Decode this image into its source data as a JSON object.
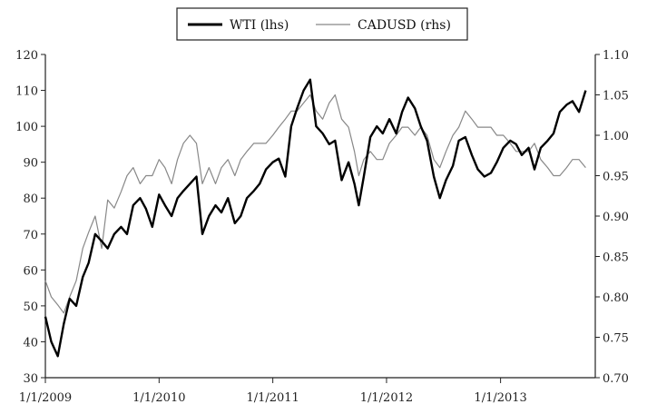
{
  "chart_data": {
    "type": "line",
    "legend_position": "top-center",
    "grid": false,
    "x_ticks": [
      "1/1/2009",
      "1/1/2010",
      "1/1/2011",
      "1/1/2012",
      "1/1/2013"
    ],
    "y_left": {
      "range": [
        30,
        120
      ],
      "ticks": [
        "30",
        "40",
        "50",
        "60",
        "70",
        "80",
        "90",
        "100",
        "110",
        "120"
      ]
    },
    "y_right": {
      "range": [
        0.7,
        1.1
      ],
      "ticks": [
        "0.70",
        "0.75",
        "0.80",
        "0.85",
        "0.90",
        "0.95",
        "1.00",
        "1.05",
        "1.10"
      ]
    },
    "series": [
      {
        "name": "WTI (lhs)",
        "axis": "left",
        "color": "#000000",
        "x": [
          "2009-01-01",
          "2009-01-20",
          "2009-02-10",
          "2009-03-01",
          "2009-03-20",
          "2009-04-10",
          "2009-05-01",
          "2009-05-20",
          "2009-06-10",
          "2009-07-01",
          "2009-07-20",
          "2009-08-10",
          "2009-09-01",
          "2009-09-20",
          "2009-10-10",
          "2009-11-01",
          "2009-11-20",
          "2009-12-10",
          "2010-01-01",
          "2010-01-20",
          "2010-02-10",
          "2010-03-01",
          "2010-03-20",
          "2010-04-10",
          "2010-05-01",
          "2010-05-20",
          "2010-06-10",
          "2010-07-01",
          "2010-07-20",
          "2010-08-10",
          "2010-09-01",
          "2010-09-20",
          "2010-10-10",
          "2010-11-01",
          "2010-11-20",
          "2010-12-10",
          "2011-01-01",
          "2011-01-20",
          "2011-02-10",
          "2011-03-01",
          "2011-03-20",
          "2011-04-10",
          "2011-05-01",
          "2011-05-20",
          "2011-06-10",
          "2011-07-01",
          "2011-07-20",
          "2011-08-10",
          "2011-09-01",
          "2011-09-20",
          "2011-10-04",
          "2011-10-20",
          "2011-11-10",
          "2011-12-01",
          "2011-12-20",
          "2012-01-10",
          "2012-02-01",
          "2012-02-20",
          "2012-03-10",
          "2012-04-01",
          "2012-04-20",
          "2012-05-10",
          "2012-06-01",
          "2012-06-20",
          "2012-07-10",
          "2012-08-01",
          "2012-08-20",
          "2012-09-10",
          "2012-10-01",
          "2012-10-20",
          "2012-11-10",
          "2012-12-01",
          "2012-12-20",
          "2013-01-10",
          "2013-02-01",
          "2013-02-20",
          "2013-03-10",
          "2013-04-01",
          "2013-04-20",
          "2013-05-10",
          "2013-06-01",
          "2013-06-20",
          "2013-07-10",
          "2013-08-01",
          "2013-08-20",
          "2013-09-10",
          "2013-10-01"
        ],
        "values": [
          47,
          40,
          36,
          45,
          52,
          50,
          58,
          62,
          70,
          68,
          66,
          70,
          72,
          70,
          78,
          80,
          77,
          72,
          81,
          78,
          75,
          80,
          82,
          84,
          86,
          70,
          75,
          78,
          76,
          80,
          73,
          75,
          80,
          82,
          84,
          88,
          90,
          91,
          86,
          100,
          105,
          110,
          113,
          100,
          98,
          95,
          96,
          85,
          90,
          84,
          78,
          86,
          97,
          100,
          98,
          102,
          98,
          104,
          108,
          105,
          100,
          96,
          86,
          80,
          85,
          89,
          96,
          97,
          92,
          88,
          86,
          87,
          90,
          94,
          96,
          95,
          92,
          94,
          88,
          94,
          96,
          98,
          104,
          106,
          107,
          104,
          110
        ]
      },
      {
        "name": "CADUSD (rhs)",
        "axis": "right",
        "color": "#888888",
        "x": [
          "2009-01-01",
          "2009-01-20",
          "2009-02-10",
          "2009-03-01",
          "2009-03-20",
          "2009-04-10",
          "2009-05-01",
          "2009-05-20",
          "2009-06-10",
          "2009-07-01",
          "2009-07-20",
          "2009-08-10",
          "2009-09-01",
          "2009-09-20",
          "2009-10-10",
          "2009-11-01",
          "2009-11-20",
          "2009-12-10",
          "2010-01-01",
          "2010-01-20",
          "2010-02-10",
          "2010-03-01",
          "2010-03-20",
          "2010-04-10",
          "2010-05-01",
          "2010-05-20",
          "2010-06-10",
          "2010-07-01",
          "2010-07-20",
          "2010-08-10",
          "2010-09-01",
          "2010-09-20",
          "2010-10-10",
          "2010-11-01",
          "2010-11-20",
          "2010-12-10",
          "2011-01-01",
          "2011-01-20",
          "2011-02-10",
          "2011-03-01",
          "2011-03-20",
          "2011-04-10",
          "2011-05-01",
          "2011-05-20",
          "2011-06-10",
          "2011-07-01",
          "2011-07-20",
          "2011-08-10",
          "2011-09-01",
          "2011-09-20",
          "2011-10-04",
          "2011-10-20",
          "2011-11-10",
          "2011-12-01",
          "2011-12-20",
          "2012-01-10",
          "2012-02-01",
          "2012-02-20",
          "2012-03-10",
          "2012-04-01",
          "2012-04-20",
          "2012-05-10",
          "2012-06-01",
          "2012-06-20",
          "2012-07-10",
          "2012-08-01",
          "2012-08-20",
          "2012-09-10",
          "2012-10-01",
          "2012-10-20",
          "2012-11-10",
          "2012-12-01",
          "2012-12-20",
          "2013-01-10",
          "2013-02-01",
          "2013-02-20",
          "2013-03-10",
          "2013-04-01",
          "2013-04-20",
          "2013-05-10",
          "2013-06-01",
          "2013-06-20",
          "2013-07-10",
          "2013-08-01",
          "2013-08-20",
          "2013-09-10",
          "2013-10-01"
        ],
        "values": [
          0.82,
          0.8,
          0.79,
          0.78,
          0.8,
          0.82,
          0.86,
          0.88,
          0.9,
          0.86,
          0.92,
          0.91,
          0.93,
          0.95,
          0.96,
          0.94,
          0.95,
          0.95,
          0.97,
          0.96,
          0.94,
          0.97,
          0.99,
          1.0,
          0.99,
          0.94,
          0.96,
          0.94,
          0.96,
          0.97,
          0.95,
          0.97,
          0.98,
          0.99,
          0.99,
          0.99,
          1.0,
          1.01,
          1.02,
          1.03,
          1.03,
          1.04,
          1.05,
          1.03,
          1.02,
          1.04,
          1.05,
          1.02,
          1.01,
          0.98,
          0.95,
          0.97,
          0.98,
          0.97,
          0.97,
          0.99,
          1.0,
          1.01,
          1.01,
          1.0,
          1.01,
          1.0,
          0.97,
          0.96,
          0.98,
          1.0,
          1.01,
          1.03,
          1.02,
          1.01,
          1.01,
          1.01,
          1.0,
          1.0,
          0.99,
          0.98,
          0.98,
          0.98,
          0.99,
          0.97,
          0.96,
          0.95,
          0.95,
          0.96,
          0.97,
          0.97,
          0.96
        ]
      }
    ]
  }
}
